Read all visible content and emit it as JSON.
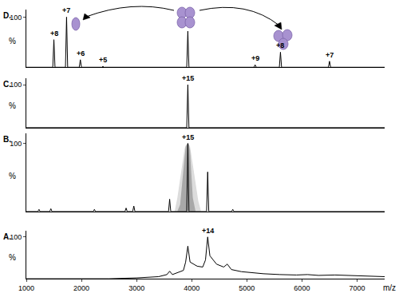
{
  "chart_data": [
    {
      "type": "line",
      "title": "D.",
      "x": [
        1000,
        1480,
        1500,
        1520,
        1710,
        1730,
        1750,
        1960,
        1980,
        2000,
        2370,
        2390,
        2410,
        3910,
        3930,
        3950,
        5130,
        5150,
        5170,
        5590,
        5610,
        5630,
        6480,
        6500,
        6520,
        7500
      ],
      "series": [
        {
          "color": "#000000",
          "values": [
            0,
            0,
            55,
            0,
            0,
            100,
            0,
            0,
            15,
            0,
            0,
            2,
            0,
            0,
            72,
            0,
            0,
            5,
            0,
            0,
            30,
            0,
            0,
            12,
            0,
            0
          ]
        }
      ],
      "annotations": [
        {
          "x": 1500,
          "y": 55,
          "text": "+8"
        },
        {
          "x": 1730,
          "y": 100,
          "text": "+7"
        },
        {
          "x": 1980,
          "y": 15,
          "text": "+6"
        },
        {
          "x": 2390,
          "y": 2,
          "text": "+5"
        },
        {
          "x": 5150,
          "y": 5,
          "text": "+9"
        },
        {
          "x": 5610,
          "y": 30,
          "text": "+8"
        },
        {
          "x": 6500,
          "y": 12,
          "text": "+7"
        }
      ],
      "xlim": [
        1000,
        7500
      ],
      "xticks": [
        1000,
        2000,
        3000,
        4000,
        5000,
        6000,
        7000
      ],
      "ylim": [
        0,
        115
      ],
      "yticks": [
        100
      ],
      "ylabel": "%",
      "grid": false,
      "tick_labels": "y"
    },
    {
      "type": "line",
      "title": "C.",
      "x": [
        1000,
        3910,
        3930,
        3950,
        7500
      ],
      "series": [
        {
          "color": "#000000",
          "values": [
            0,
            0,
            100,
            0,
            0
          ]
        }
      ],
      "annotations": [
        {
          "x": 3930,
          "y": 100,
          "text": "+15"
        }
      ],
      "xlim": [
        1000,
        7500
      ],
      "xticks": [
        1000,
        2000,
        3000,
        4000,
        5000,
        6000,
        7000
      ],
      "ylim": [
        0,
        115
      ],
      "yticks": [
        100
      ],
      "ylabel": "%",
      "grid": false,
      "tick_labels": "y"
    },
    {
      "type": "line",
      "title": "B.",
      "x": [
        1000,
        1210,
        1230,
        1250,
        1425,
        1445,
        1465,
        2215,
        2235,
        2255,
        2790,
        2810,
        2830,
        2930,
        2950,
        2970,
        3580,
        3600,
        3620,
        3690,
        3740,
        3790,
        3840,
        3870,
        3890,
        3910,
        3930,
        3950,
        3970,
        3990,
        4020,
        4070,
        4120,
        4170,
        4270,
        4290,
        4310,
        4725,
        4745,
        4765,
        7500
      ],
      "series": [
        {
          "type": "area",
          "color": "#dcdcdc",
          "values": [
            0,
            0,
            0,
            0,
            0,
            0,
            0,
            0,
            0,
            0,
            0,
            0,
            0,
            0,
            0,
            0,
            0,
            0,
            0,
            0,
            20,
            50,
            80,
            92,
            97,
            99,
            100,
            99,
            95,
            85,
            70,
            40,
            15,
            0,
            0,
            0,
            0,
            0,
            0,
            0,
            0
          ]
        },
        {
          "type": "area",
          "color": "#a8a8a8",
          "values": [
            0,
            0,
            0,
            0,
            0,
            0,
            0,
            0,
            0,
            0,
            0,
            0,
            0,
            0,
            0,
            0,
            0,
            0,
            0,
            0,
            0,
            10,
            55,
            85,
            95,
            98,
            100,
            98,
            90,
            60,
            20,
            0,
            0,
            0,
            0,
            0,
            0,
            0,
            0,
            0,
            0
          ]
        },
        {
          "type": "line",
          "color": "#000000",
          "values": [
            0,
            0,
            3,
            0,
            0,
            4,
            0,
            0,
            3,
            0,
            0,
            5,
            0,
            0,
            8,
            0,
            0,
            18,
            0,
            0,
            0,
            0,
            0,
            0,
            0,
            0,
            100,
            0,
            0,
            0,
            0,
            0,
            0,
            0,
            0,
            58,
            0,
            0,
            3,
            0,
            0
          ]
        }
      ],
      "annotations": [
        {
          "x": 3930,
          "y": 100,
          "text": "+15"
        }
      ],
      "xlim": [
        1000,
        7500
      ],
      "xticks": [
        1000,
        2000,
        3000,
        4000,
        5000,
        6000,
        7000
      ],
      "ylim": [
        0,
        115
      ],
      "yticks": [
        100
      ],
      "ylabel": "%",
      "grid": false,
      "tick_labels": "y"
    },
    {
      "type": "line",
      "title": "A.",
      "x": [
        1000,
        2500,
        3000,
        3400,
        3550,
        3600,
        3650,
        3850,
        3890,
        3930,
        3970,
        4100,
        4200,
        4250,
        4290,
        4330,
        4450,
        4580,
        4645,
        4720,
        4900,
        5300,
        5600,
        5900,
        6100,
        6300,
        6600,
        7000,
        7500
      ],
      "series": [
        {
          "color": "#000000",
          "values": [
            0,
            0,
            2,
            5,
            10,
            18,
            10,
            20,
            40,
            78,
            40,
            30,
            28,
            45,
            100,
            55,
            35,
            28,
            35,
            22,
            17,
            12,
            10,
            9,
            10,
            8,
            9,
            7,
            5
          ]
        }
      ],
      "annotations": [
        {
          "x": 4290,
          "y": 100,
          "text": "+14"
        }
      ],
      "xlim": [
        1000,
        7500
      ],
      "xticks": [
        1000,
        2000,
        3000,
        4000,
        5000,
        6000,
        7000
      ],
      "ylim": [
        0,
        115
      ],
      "yticks": [
        100
      ],
      "ylabel": "%",
      "xlabel": "m/z",
      "grid": false
    }
  ]
}
